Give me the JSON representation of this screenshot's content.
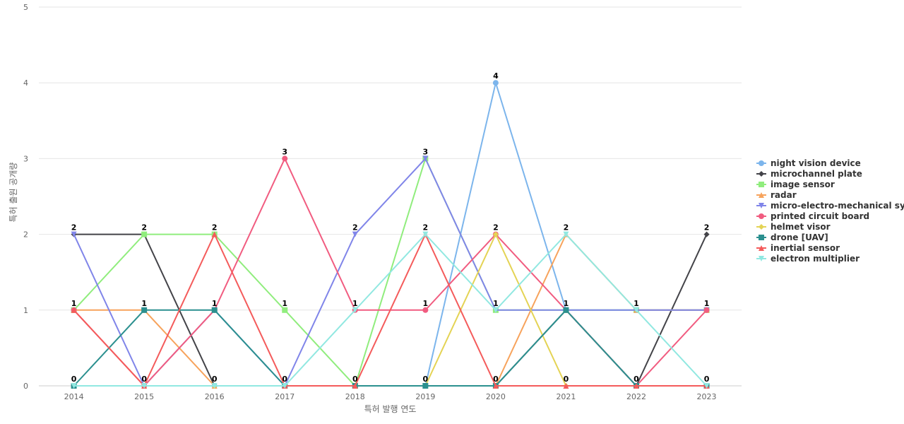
{
  "chart_data": {
    "type": "line",
    "title": "",
    "xlabel": "특허 발행 연도",
    "ylabel": "특허 출원 공개량",
    "x": [
      "2014",
      "2015",
      "2016",
      "2017",
      "2018",
      "2019",
      "2020",
      "2021",
      "2022",
      "2023"
    ],
    "ylim": [
      0,
      5
    ],
    "yticks": [
      "0",
      "1",
      "2",
      "3",
      "4",
      "5"
    ],
    "grid": true,
    "legend_position": "right",
    "series": [
      {
        "name": "night vision device",
        "color": "#7cb5ec",
        "marker": "circle",
        "values": [
          0,
          0,
          0,
          0,
          0,
          0,
          4,
          1,
          1,
          1
        ]
      },
      {
        "name": "microchannel plate",
        "color": "#434348",
        "marker": "diamond",
        "values": [
          2,
          2,
          0,
          0,
          0,
          0,
          0,
          1,
          0,
          2
        ]
      },
      {
        "name": "image sensor",
        "color": "#90ed7d",
        "marker": "square",
        "values": [
          1,
          2,
          2,
          1,
          0,
          3,
          1,
          1,
          1,
          1
        ]
      },
      {
        "name": "radar",
        "color": "#f7a35c",
        "marker": "triangle",
        "values": [
          1,
          1,
          0,
          0,
          0,
          0,
          0,
          2,
          1,
          1
        ]
      },
      {
        "name": "micro-electro-mechanical sy...",
        "color": "#8085e9",
        "marker": "triangle-down",
        "values": [
          2,
          0,
          1,
          0,
          2,
          3,
          1,
          1,
          1,
          1
        ]
      },
      {
        "name": "printed circuit board",
        "color": "#f15c80",
        "marker": "circle",
        "values": [
          1,
          0,
          1,
          3,
          1,
          1,
          2,
          1,
          0,
          1
        ]
      },
      {
        "name": "helmet visor",
        "color": "#e4d354",
        "marker": "diamond",
        "values": [
          0,
          0,
          0,
          0,
          0,
          0,
          2,
          0,
          0,
          0
        ]
      },
      {
        "name": "drone [UAV]",
        "color": "#2b908f",
        "marker": "square",
        "values": [
          0,
          1,
          1,
          0,
          0,
          0,
          0,
          1,
          0,
          0
        ]
      },
      {
        "name": "inertial sensor",
        "color": "#f45b5b",
        "marker": "triangle",
        "values": [
          1,
          0,
          2,
          0,
          0,
          2,
          0,
          0,
          0,
          0
        ]
      },
      {
        "name": "electron multiplier",
        "color": "#91e8e1",
        "marker": "triangle-down",
        "values": [
          0,
          0,
          0,
          0,
          1,
          2,
          1,
          2,
          1,
          0
        ]
      }
    ],
    "data_labels": [
      {
        "x": "2014",
        "y": 2,
        "text": "2"
      },
      {
        "x": "2014",
        "y": 1,
        "text": "1"
      },
      {
        "x": "2014",
        "y": 0,
        "text": "0"
      },
      {
        "x": "2015",
        "y": 2,
        "text": "2"
      },
      {
        "x": "2015",
        "y": 1,
        "text": "1"
      },
      {
        "x": "2015",
        "y": 0,
        "text": "0"
      },
      {
        "x": "2016",
        "y": 2,
        "text": "2"
      },
      {
        "x": "2016",
        "y": 1,
        "text": "1"
      },
      {
        "x": "2016",
        "y": 0,
        "text": "0"
      },
      {
        "x": "2017",
        "y": 3,
        "text": "3"
      },
      {
        "x": "2017",
        "y": 1,
        "text": "1"
      },
      {
        "x": "2017",
        "y": 0,
        "text": "0"
      },
      {
        "x": "2018",
        "y": 2,
        "text": "2"
      },
      {
        "x": "2018",
        "y": 1,
        "text": "1"
      },
      {
        "x": "2018",
        "y": 0,
        "text": "0"
      },
      {
        "x": "2019",
        "y": 3,
        "text": "3"
      },
      {
        "x": "2019",
        "y": 2,
        "text": "2"
      },
      {
        "x": "2019",
        "y": 1,
        "text": "1"
      },
      {
        "x": "2019",
        "y": 0,
        "text": "0"
      },
      {
        "x": "2020",
        "y": 4,
        "text": "4"
      },
      {
        "x": "2020",
        "y": 2,
        "text": "2"
      },
      {
        "x": "2020",
        "y": 1,
        "text": "1"
      },
      {
        "x": "2020",
        "y": 0,
        "text": "0"
      },
      {
        "x": "2021",
        "y": 2,
        "text": "2"
      },
      {
        "x": "2021",
        "y": 1,
        "text": "1"
      },
      {
        "x": "2021",
        "y": 0,
        "text": "0"
      },
      {
        "x": "2022",
        "y": 1,
        "text": "1"
      },
      {
        "x": "2022",
        "y": 0,
        "text": "0"
      },
      {
        "x": "2023",
        "y": 2,
        "text": "2"
      },
      {
        "x": "2023",
        "y": 1,
        "text": "1"
      },
      {
        "x": "2023",
        "y": 0,
        "text": "0"
      }
    ]
  }
}
